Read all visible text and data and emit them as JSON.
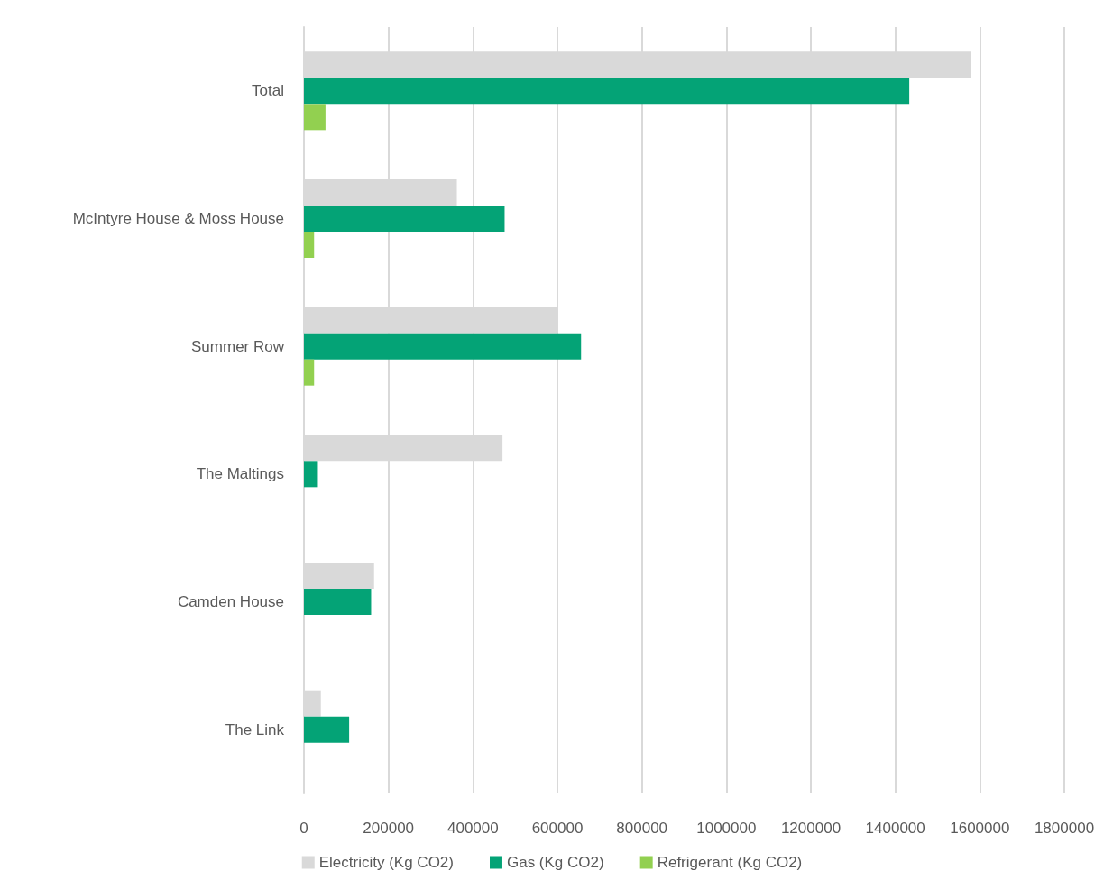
{
  "chart_data": {
    "type": "bar",
    "orientation": "horizontal",
    "categories": [
      "Total",
      "McIntyre House & Moss House",
      "Summer Row",
      "The Maltings",
      "Camden House",
      "The Link"
    ],
    "series": [
      {
        "name": "Electricity (Kg CO2)",
        "color": "#d9d9d9",
        "values": [
          1580000,
          362000,
          598000,
          470000,
          166000,
          40000
        ]
      },
      {
        "name": "Gas (Kg CO2)",
        "color": "#04a376",
        "values": [
          1433000,
          475000,
          656000,
          33000,
          159000,
          107000
        ]
      },
      {
        "name": "Refrigerant (Kg CO2)",
        "color": "#92d050",
        "values": [
          51000,
          24000,
          24000,
          0,
          0,
          0
        ]
      }
    ],
    "xlim": [
      0,
      1800000
    ],
    "xticks": [
      0,
      200000,
      400000,
      600000,
      800000,
      1000000,
      1200000,
      1400000,
      1600000,
      1800000
    ],
    "grid": "x",
    "legend": "bottom"
  }
}
